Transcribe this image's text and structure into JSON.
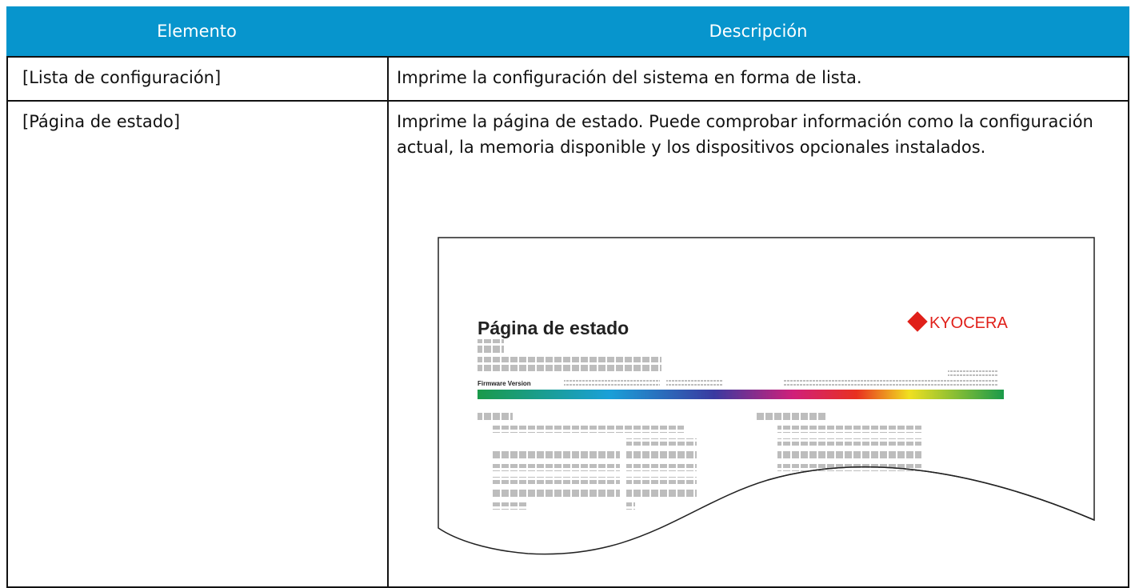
{
  "table": {
    "header": [
      "Elemento",
      "Descripción"
    ],
    "rows": [
      [
        "[Lista de configuración]",
        "Imprime la configuración del sistema en forma de lista."
      ],
      [
        "[Página de estado]",
        "Imprime la página de estado. Puede comprobar información como la configuración actual, la memoria disponible y los dispositivos opcionales instalados."
      ]
    ]
  },
  "illustration": {
    "title": "Página de estado",
    "logo": "KYOCERA",
    "label": "Firmware Version"
  }
}
